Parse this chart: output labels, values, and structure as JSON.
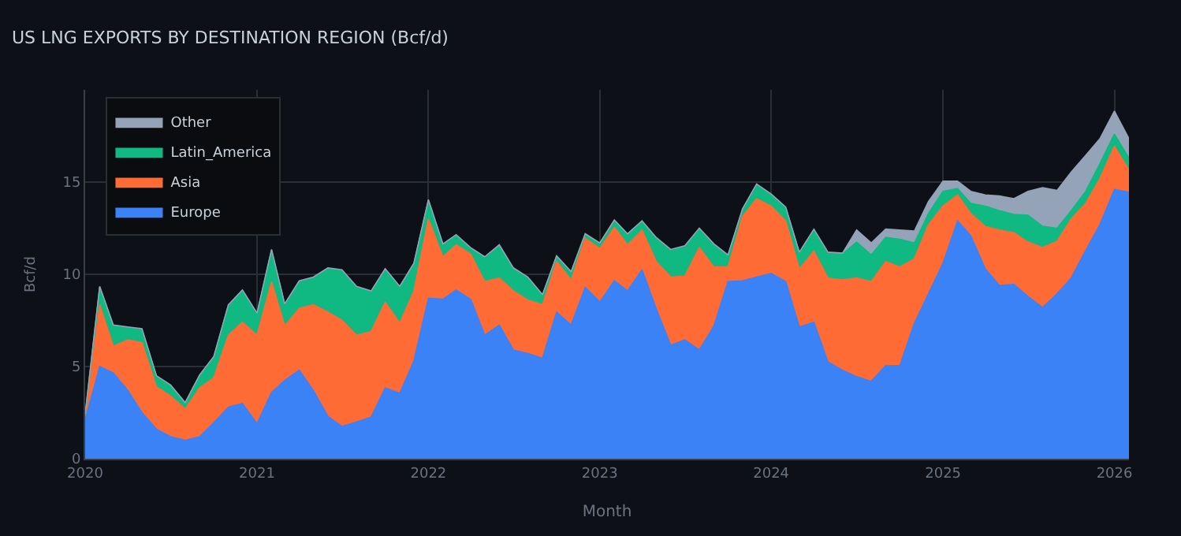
{
  "chart_data": {
    "type": "area",
    "stacked": true,
    "title": "US LNG EXPORTS BY DESTINATION REGION (Bcf/d)",
    "xlabel": "Month",
    "ylabel": "Bcf/d",
    "x": [
      "2020-01",
      "2020-02",
      "2020-03",
      "2020-04",
      "2020-05",
      "2020-06",
      "2020-07",
      "2020-08",
      "2020-09",
      "2020-10",
      "2020-11",
      "2020-12",
      "2021-01",
      "2021-02",
      "2021-03",
      "2021-04",
      "2021-05",
      "2021-06",
      "2021-07",
      "2021-08",
      "2021-09",
      "2021-10",
      "2021-11",
      "2021-12",
      "2022-01",
      "2022-02",
      "2022-03",
      "2022-04",
      "2022-05",
      "2022-06",
      "2022-07",
      "2022-08",
      "2022-09",
      "2022-10",
      "2022-11",
      "2022-12",
      "2023-01",
      "2023-02",
      "2023-03",
      "2023-04",
      "2023-05",
      "2023-06",
      "2023-07",
      "2023-08",
      "2023-09",
      "2023-10",
      "2023-11",
      "2023-12",
      "2024-01",
      "2024-02",
      "2024-03",
      "2024-04",
      "2024-05",
      "2024-06",
      "2024-07",
      "2024-08",
      "2024-09",
      "2024-10",
      "2024-11",
      "2024-12",
      "2025-01",
      "2025-02",
      "2025-03",
      "2025-04",
      "2025-05",
      "2025-06",
      "2025-07",
      "2025-08",
      "2025-09",
      "2025-10",
      "2025-11",
      "2025-12",
      "2026-01",
      "2026-02"
    ],
    "series": [
      {
        "name": "Europe",
        "color": "#3b82f6",
        "values": [
          2.1,
          5.0,
          4.65,
          3.7,
          2.5,
          1.6,
          1.2,
          1.0,
          1.2,
          1.95,
          2.8,
          3.0,
          1.9,
          3.6,
          4.25,
          4.8,
          3.7,
          2.3,
          1.75,
          2.0,
          2.25,
          3.85,
          3.55,
          5.3,
          8.7,
          8.65,
          9.15,
          8.65,
          6.7,
          7.25,
          5.9,
          5.7,
          5.45,
          7.95,
          7.25,
          9.3,
          8.5,
          9.65,
          9.1,
          10.25,
          8.15,
          6.15,
          6.45,
          5.9,
          7.2,
          9.6,
          9.65,
          9.85,
          10.05,
          9.6,
          7.15,
          7.4,
          5.25,
          4.8,
          4.45,
          4.2,
          5.05,
          5.05,
          7.35,
          8.95,
          10.6,
          12.9,
          12.1,
          10.3,
          9.4,
          9.45,
          8.8,
          8.2,
          8.95,
          9.8,
          11.3,
          12.7,
          14.6,
          14.45
        ]
      },
      {
        "name": "Asia",
        "color": "#ff6b35",
        "values": [
          0.2,
          3.35,
          1.45,
          2.75,
          3.8,
          2.3,
          2.2,
          1.7,
          2.65,
          2.45,
          3.9,
          4.4,
          4.8,
          6.0,
          2.95,
          3.35,
          4.65,
          5.65,
          5.75,
          4.7,
          4.65,
          4.65,
          3.8,
          3.8,
          4.3,
          2.3,
          2.45,
          2.45,
          2.9,
          2.55,
          3.2,
          2.9,
          2.9,
          2.75,
          2.45,
          2.65,
          2.9,
          2.9,
          2.5,
          2.15,
          2.55,
          3.7,
          3.45,
          5.55,
          3.2,
          0.8,
          3.5,
          4.25,
          3.65,
          3.3,
          3.15,
          3.85,
          4.55,
          4.9,
          5.35,
          5.4,
          5.65,
          5.35,
          3.5,
          3.75,
          3.1,
          1.4,
          1.2,
          2.3,
          3.0,
          2.8,
          2.95,
          3.25,
          2.85,
          3.2,
          2.55,
          2.5,
          2.35,
          1.2
        ]
      },
      {
        "name": "Latin_America",
        "color": "#10b981",
        "values": [
          0.05,
          0.95,
          1.1,
          0.65,
          0.7,
          0.55,
          0.55,
          0.3,
          0.65,
          1.1,
          1.6,
          1.7,
          1.15,
          1.7,
          1.15,
          1.45,
          1.45,
          2.35,
          2.7,
          2.6,
          2.15,
          1.75,
          1.95,
          1.45,
          1.0,
          0.65,
          0.5,
          0.3,
          1.3,
          1.75,
          1.2,
          1.2,
          0.5,
          0.25,
          0.4,
          0.2,
          0.25,
          0.35,
          0.55,
          0.45,
          1.25,
          1.45,
          1.6,
          1.0,
          1.2,
          0.6,
          0.35,
          0.75,
          0.6,
          0.7,
          0.85,
          1.15,
          1.35,
          1.4,
          1.95,
          1.45,
          1.3,
          1.5,
          0.85,
          0.6,
          0.8,
          0.35,
          0.55,
          1.1,
          1.05,
          1.0,
          1.45,
          1.15,
          0.7,
          0.45,
          0.65,
          0.8,
          0.65,
          0.65
        ]
      },
      {
        "name": "Other",
        "color": "#94a3b8",
        "values": [
          0.05,
          0.05,
          0.05,
          0.05,
          0.05,
          0.05,
          0.05,
          0.05,
          0.05,
          0.05,
          0.05,
          0.05,
          0.05,
          0.05,
          0.05,
          0.05,
          0.05,
          0.05,
          0.05,
          0.05,
          0.05,
          0.05,
          0.05,
          0.05,
          0.05,
          0.05,
          0.05,
          0.05,
          0.05,
          0.05,
          0.05,
          0.05,
          0.05,
          0.05,
          0.05,
          0.05,
          0.05,
          0.05,
          0.05,
          0.05,
          0.05,
          0.05,
          0.05,
          0.05,
          0.05,
          0.05,
          0.05,
          0.05,
          0.05,
          0.05,
          0.05,
          0.05,
          0.05,
          0.05,
          0.65,
          0.65,
          0.45,
          0.5,
          0.65,
          0.65,
          0.55,
          0.4,
          0.65,
          0.6,
          0.8,
          0.85,
          1.3,
          2.1,
          2.05,
          2.1,
          1.95,
          1.35,
          1.25,
          1.05
        ]
      }
    ],
    "xlim": [
      "2020-01",
      "2026-02"
    ],
    "xticks": [
      {
        "value": "2020-01",
        "label": "2020"
      },
      {
        "value": "2021-01",
        "label": "2021"
      },
      {
        "value": "2022-01",
        "label": "2022"
      },
      {
        "value": "2023-01",
        "label": "2023"
      },
      {
        "value": "2024-01",
        "label": "2024"
      },
      {
        "value": "2025-01",
        "label": "2025"
      },
      {
        "value": "2026-01",
        "label": "2026"
      }
    ],
    "ylim": [
      0,
      20
    ],
    "yticks": [
      0,
      5,
      10,
      15
    ],
    "grid": true,
    "legend": "top left"
  }
}
